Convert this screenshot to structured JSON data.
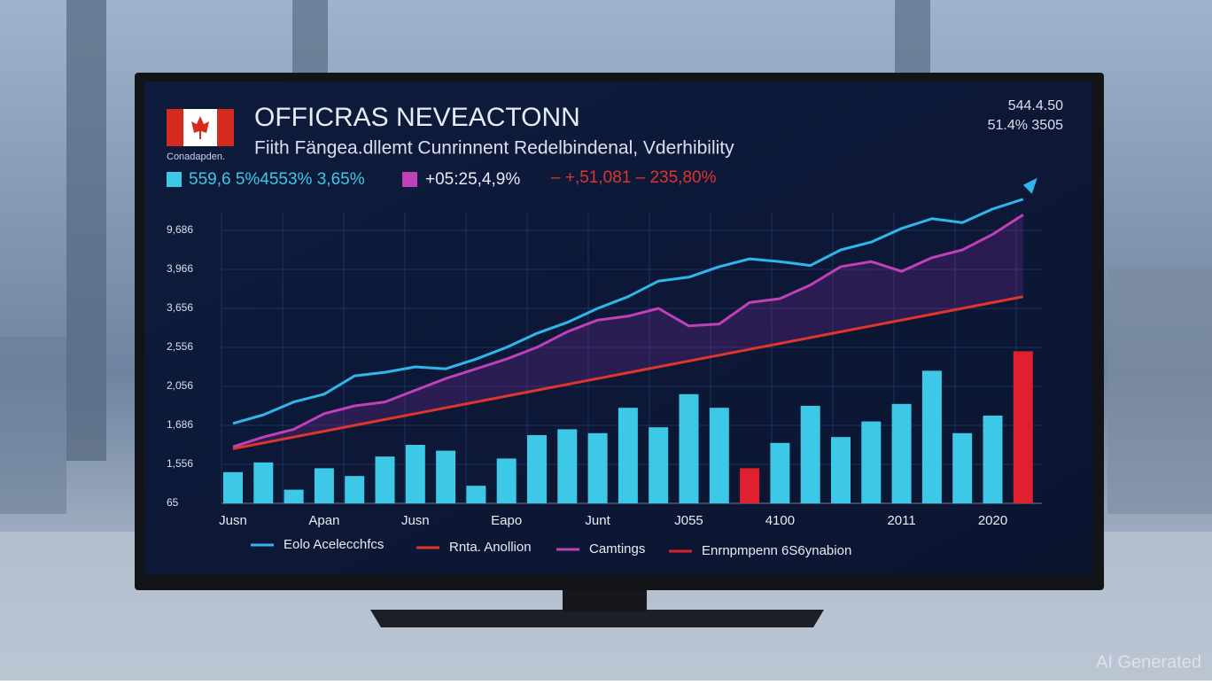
{
  "chart_data": {
    "type": "bar",
    "title": "OFFICRAS NEVEACTONN",
    "subtitle": "Fiith Fängea.dllemt Cunrinnent Redelbindenal, Vderhibility",
    "flag_caption": "Conadapden.",
    "stats": [
      "559,6 5%4553% 3,65%",
      "+05:25,4,9%",
      "– +,51,081 – 235,80%"
    ],
    "corner_texts": [
      "544.4.50",
      "51.4% 3505"
    ],
    "watermark": "AI Generated",
    "categories": [
      "Jusn",
      null,
      null,
      "Apan",
      null,
      null,
      "Jusn",
      null,
      null,
      "Eapo",
      null,
      null,
      "Junt",
      null,
      null,
      "J055",
      null,
      null,
      "4100",
      null,
      null,
      null,
      "2011",
      null,
      null,
      "2020",
      null
    ],
    "ylim": [
      0,
      8
    ],
    "yticks": [
      {
        "value": 0,
        "label": "65"
      },
      {
        "value": 1,
        "label": "1,556"
      },
      {
        "value": 2,
        "label": "1,686"
      },
      {
        "value": 3,
        "label": "2,056"
      },
      {
        "value": 4,
        "label": "2,556"
      },
      {
        "value": 5,
        "label": "3,656"
      },
      {
        "value": 6,
        "label": "3,966"
      },
      {
        "value": 7,
        "label": "9,686"
      }
    ],
    "grid": true,
    "series": [
      {
        "name": "Enrnpmpenn 6S6ynabion",
        "type": "bar",
        "color": "#e0202e",
        "values": [
          0.8,
          1.05,
          0.35,
          0.9,
          0.7,
          1.2,
          1.5,
          1.35,
          0.45,
          1.15,
          1.75,
          1.9,
          1.8,
          2.45,
          1.95,
          2.8,
          2.45,
          0.9,
          1.55,
          2.5,
          1.7,
          2.1,
          2.55,
          3.4,
          1.8,
          2.25,
          3.9
        ],
        "colors": [
          "#3ec8e8",
          "#3ec8e8",
          "#3ec8e8",
          "#3ec8e8",
          "#3ec8e8",
          "#3ec8e8",
          "#3ec8e8",
          "#3ec8e8",
          "#3ec8e8",
          "#3ec8e8",
          "#3ec8e8",
          "#3ec8e8",
          "#3ec8e8",
          "#3ec8e8",
          "#3ec8e8",
          "#3ec8e8",
          "#3ec8e8",
          "#e0202e",
          "#3ec8e8",
          "#3ec8e8",
          "#3ec8e8",
          "#3ec8e8",
          "#3ec8e8",
          "#3ec8e8",
          "#3ec8e8",
          "#3ec8e8",
          "#e0202e"
        ]
      },
      {
        "name": "Eolo Acelecchfcs",
        "type": "line",
        "color": "#2fb6ea",
        "values": [
          2.05,
          2.27,
          2.6,
          2.8,
          3.27,
          3.36,
          3.5,
          3.45,
          3.7,
          4.0,
          4.36,
          4.64,
          5.0,
          5.3,
          5.7,
          5.8,
          6.07,
          6.27,
          6.2,
          6.1,
          6.5,
          6.7,
          7.05,
          7.3,
          7.2,
          7.55,
          7.8
        ]
      },
      {
        "name": "Rnta. Anollion",
        "type": "line",
        "color": "#e0352c",
        "values": [
          1.4,
          1.55,
          1.7,
          1.85,
          2.0,
          2.15,
          2.3,
          2.45,
          2.6,
          2.75,
          2.9,
          3.05,
          3.2,
          3.35,
          3.5,
          3.65,
          3.8,
          3.95,
          4.1,
          4.25,
          4.4,
          4.55,
          4.7,
          4.85,
          5.0,
          5.15,
          5.3
        ]
      },
      {
        "name": "Camtings",
        "type": "line",
        "color": "#c040b8",
        "values": [
          1.45,
          1.7,
          1.9,
          2.3,
          2.5,
          2.6,
          2.9,
          3.2,
          3.45,
          3.7,
          4.0,
          4.4,
          4.7,
          4.8,
          5.0,
          4.55,
          4.6,
          5.15,
          5.25,
          5.6,
          6.07,
          6.2,
          5.95,
          6.3,
          6.5,
          6.9,
          7.4
        ]
      }
    ]
  }
}
